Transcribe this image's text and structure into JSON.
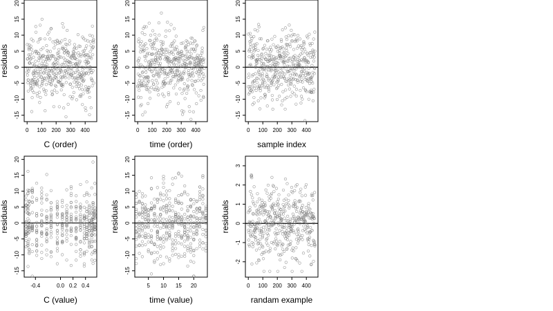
{
  "chart_data": [
    {
      "type": "scatter",
      "xlabel": "C (order)",
      "ylabel": "residuals",
      "xlim": [
        -20,
        480
      ],
      "ylim": [
        -17,
        21
      ],
      "xticks": [
        0,
        100,
        200,
        300,
        400
      ],
      "yticks": [
        -15,
        -10,
        -5,
        0,
        5,
        10,
        15,
        20
      ],
      "hline": 0,
      "gen": {
        "kind": "index",
        "n": 460,
        "sd": 5.5,
        "seed": 11
      }
    },
    {
      "type": "scatter",
      "xlabel": "time (order)",
      "ylabel": "residuals",
      "xlim": [
        -20,
        480
      ],
      "ylim": [
        -17,
        21
      ],
      "xticks": [
        0,
        100,
        200,
        300,
        400
      ],
      "yticks": [
        -15,
        -10,
        -5,
        0,
        5,
        10,
        15,
        20
      ],
      "hline": 0,
      "gen": {
        "kind": "index",
        "n": 460,
        "sd": 5.5,
        "seed": 23
      }
    },
    {
      "type": "scatter",
      "xlabel": "sample index",
      "ylabel": "residuals",
      "xlim": [
        -20,
        480
      ],
      "ylim": [
        -17,
        21
      ],
      "xticks": [
        0,
        100,
        200,
        300,
        400
      ],
      "yticks": [
        -15,
        -10,
        -5,
        0,
        5,
        10,
        15,
        20
      ],
      "hline": 0,
      "gen": {
        "kind": "index",
        "n": 460,
        "sd": 5.5,
        "seed": 37
      }
    },
    {
      "type": "scatter",
      "xlabel": "C (value)",
      "ylabel": "residuals",
      "xlim": [
        -0.58,
        0.58
      ],
      "ylim": [
        -17,
        21
      ],
      "xticks": [
        -0.4,
        0.0,
        0.2,
        0.4
      ],
      "xtick_labels": [
        "-0.4",
        "0.0",
        "0.2",
        "0.4"
      ],
      "yticks": [
        -15,
        -10,
        -5,
        0,
        5,
        10,
        15,
        20
      ],
      "hline": 0,
      "gen": {
        "kind": "columns",
        "cols": [
          -0.55,
          -0.52,
          -0.5,
          -0.45,
          -0.38,
          -0.3,
          -0.22,
          -0.15,
          -0.05,
          0.03,
          0.1,
          0.17,
          0.25,
          0.32,
          0.38,
          0.42,
          0.46,
          0.5,
          0.52,
          0.55
        ],
        "per": 23,
        "sd": 5.5,
        "seed": 51
      }
    },
    {
      "type": "scatter",
      "xlabel": "time (value)",
      "ylabel": "residuals",
      "xlim": [
        0.5,
        24.5
      ],
      "ylim": [
        -17,
        21
      ],
      "xticks": [
        5,
        10,
        15,
        20
      ],
      "yticks": [
        -15,
        -10,
        -5,
        0,
        5,
        10,
        15,
        20
      ],
      "hline": 0,
      "gen": {
        "kind": "columns",
        "cols": [
          1,
          2,
          3,
          4,
          5,
          6,
          7,
          8,
          9,
          10,
          11,
          12,
          13,
          14,
          15,
          16,
          17,
          18,
          19,
          20,
          21,
          22,
          23,
          24
        ],
        "per": 19,
        "sd": 5.5,
        "seed": 67
      }
    },
    {
      "type": "scatter",
      "xlabel": "randam example",
      "ylabel": "residuals",
      "xlim": [
        -20,
        480
      ],
      "ylim": [
        -2.8,
        3.5
      ],
      "xticks": [
        0,
        100,
        200,
        300,
        400
      ],
      "yticks": [
        -2,
        -1,
        0,
        1,
        2,
        3
      ],
      "hline": 0,
      "gen": {
        "kind": "index",
        "n": 460,
        "sd": 1.0,
        "seed": 83
      }
    }
  ]
}
